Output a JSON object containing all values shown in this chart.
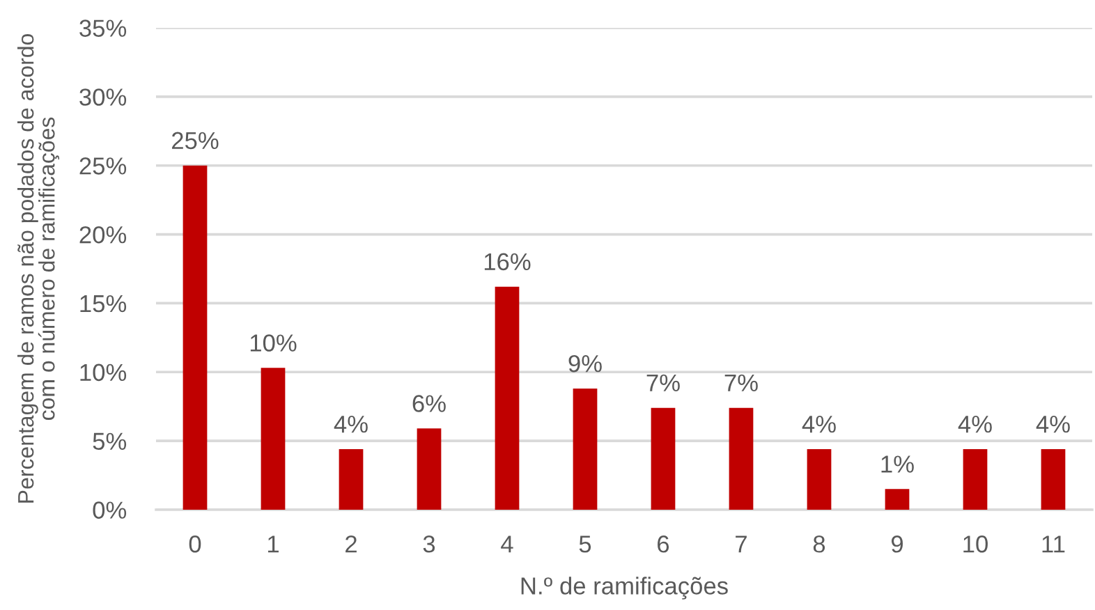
{
  "chart_data": {
    "type": "bar",
    "xlabel": "N.º de ramificações",
    "ylabel": "Percentagem de ramos não podados de acordo\ncom o número de ramificações",
    "categories": [
      "0",
      "1",
      "2",
      "3",
      "4",
      "5",
      "6",
      "7",
      "8",
      "9",
      "10",
      "11"
    ],
    "values": [
      25,
      10.3,
      4.4,
      5.9,
      16.2,
      8.8,
      7.4,
      7.4,
      4.4,
      1.5,
      4.4,
      4.4
    ],
    "color": "#c00000",
    "value_labels": [
      "25%",
      "10%",
      "4%",
      "6%",
      "16%",
      "9%",
      "7%",
      "7%",
      "4%",
      "1%",
      "4%",
      "4%"
    ],
    "ylim": [
      0,
      35
    ],
    "yticks": [
      {
        "value": 0,
        "label": "0%"
      },
      {
        "value": 5,
        "label": "5%"
      },
      {
        "value": 10,
        "label": "10%"
      },
      {
        "value": 15,
        "label": "15%"
      },
      {
        "value": 20,
        "label": "20%"
      },
      {
        "value": 25,
        "label": "25%"
      },
      {
        "value": 30,
        "label": "30%"
      },
      {
        "value": 35,
        "label": "35%"
      }
    ],
    "grid": "y"
  }
}
